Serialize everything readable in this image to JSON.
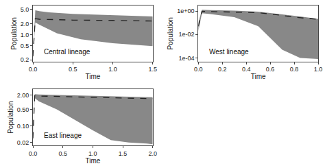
{
  "chart_data": [
    {
      "type": "band",
      "annotations": [
        "Central lineage"
      ],
      "xlabel": "Time",
      "ylabel": "Population",
      "log": "y",
      "grid": false,
      "xlim": [
        0.0,
        1.5
      ],
      "xticks": [
        {
          "value": 0.0,
          "label": "0.0"
        },
        0.5,
        {
          "value": 1.0,
          "label": "1.0"
        },
        1.5
      ],
      "ylim": [
        0.18,
        6.5
      ],
      "yticks": [
        0.2,
        0.5,
        {
          "value": 1.0,
          "label": "1.0"
        },
        {
          "value": 2.0,
          "label": "2.0"
        },
        {
          "value": 5.0,
          "label": "5.0"
        }
      ],
      "series": [
        {
          "type": "band_lower",
          "x": [
            0.0,
            0.03,
            0.08,
            0.3,
            0.6,
            1.0,
            1.5
          ],
          "values": [
            0.25,
            2.2,
            1.9,
            1.1,
            0.75,
            0.58,
            0.48
          ]
        },
        {
          "type": "band_upper",
          "color": "#888888",
          "x": [
            0.0,
            0.03,
            0.08,
            0.2,
            0.5,
            1.0,
            1.5
          ],
          "values": [
            0.25,
            4.8,
            4.5,
            4.2,
            3.8,
            3.5,
            3.2
          ]
        },
        {
          "type": "line",
          "color": "#222222",
          "line_style": "dashed",
          "x": [
            0.0,
            0.03,
            0.08,
            0.5,
            1.0,
            1.5
          ],
          "values": [
            0.25,
            2.8,
            2.7,
            2.55,
            2.5,
            2.4
          ]
        }
      ]
    },
    {
      "type": "band",
      "annotations": [
        "West lineage"
      ],
      "xlabel": "Time",
      "ylabel": "Population",
      "log": "y",
      "grid": false,
      "xlim": [
        0.0,
        1.0
      ],
      "xticks": [
        {
          "value": 0.0,
          "label": "0.0"
        },
        0.2,
        0.4,
        0.6,
        0.8,
        {
          "value": 1.0,
          "label": "1.0"
        }
      ],
      "ylim": [
        5e-05,
        3.0
      ],
      "yticks": [
        {
          "value": 0.0001,
          "label": "1e-04"
        },
        {
          "value": 0.01,
          "label": "1e-02"
        },
        {
          "value": 1.0,
          "label": "1e+00"
        }
      ],
      "series": [
        {
          "type": "band_lower",
          "x": [
            0.0,
            0.03,
            0.1,
            0.3,
            0.5,
            0.6,
            0.7,
            0.85,
            1.0
          ],
          "values": [
            0.02,
            0.65,
            0.55,
            0.3,
            0.05,
            0.005,
            0.0005,
            0.0001,
            8e-05
          ]
        },
        {
          "type": "band_upper",
          "color": "#888888",
          "x": [
            0.0,
            0.03,
            0.1,
            0.3,
            0.5,
            0.7,
            0.85,
            1.0
          ],
          "values": [
            0.1,
            1.3,
            1.2,
            1.1,
            0.9,
            0.55,
            0.35,
            0.22
          ]
        },
        {
          "type": "line",
          "color": "#222222",
          "line_style": "dashed",
          "x": [
            0.0,
            0.03,
            0.1,
            0.3,
            0.5,
            0.65,
            0.8,
            1.0
          ],
          "values": [
            0.05,
            0.95,
            0.92,
            0.85,
            0.72,
            0.5,
            0.3,
            0.2
          ]
        }
      ]
    },
    {
      "type": "band",
      "annotations": [
        "East lineage"
      ],
      "xlabel": "Time",
      "ylabel": "Population",
      "log": "y",
      "grid": false,
      "xlim": [
        0.0,
        2.0
      ],
      "xticks": [
        {
          "value": 0.0,
          "label": "0.0"
        },
        0.5,
        {
          "value": 1.0,
          "label": "1.0"
        },
        1.5,
        {
          "value": 2.0,
          "label": "2.0"
        }
      ],
      "ylim": [
        0.015,
        3.5
      ],
      "yticks": [
        0.02,
        {
          "value": 0.1,
          "label": "0.10"
        },
        {
          "value": 0.5,
          "label": "0.50"
        },
        {
          "value": 2.0,
          "label": "2.00"
        }
      ],
      "series": [
        {
          "type": "band_lower",
          "x": [
            0.0,
            0.03,
            0.1,
            0.4,
            0.7,
            1.0,
            1.3,
            1.6,
            1.9,
            2.0
          ],
          "values": [
            0.03,
            1.5,
            1.1,
            0.5,
            0.18,
            0.065,
            0.025,
            0.02,
            0.018,
            0.017
          ]
        },
        {
          "type": "band_upper",
          "color": "#888888",
          "x": [
            0.0,
            0.03,
            0.1,
            0.5,
            1.0,
            1.5,
            2.0
          ],
          "values": [
            0.05,
            2.2,
            2.15,
            2.0,
            1.85,
            1.75,
            1.65
          ]
        },
        {
          "type": "line",
          "color": "#222222",
          "line_style": "dashed",
          "x": [
            0.0,
            0.03,
            0.1,
            0.5,
            1.0,
            1.5,
            2.0
          ],
          "values": [
            0.03,
            1.9,
            1.85,
            1.75,
            1.65,
            1.55,
            1.42
          ]
        }
      ]
    }
  ]
}
